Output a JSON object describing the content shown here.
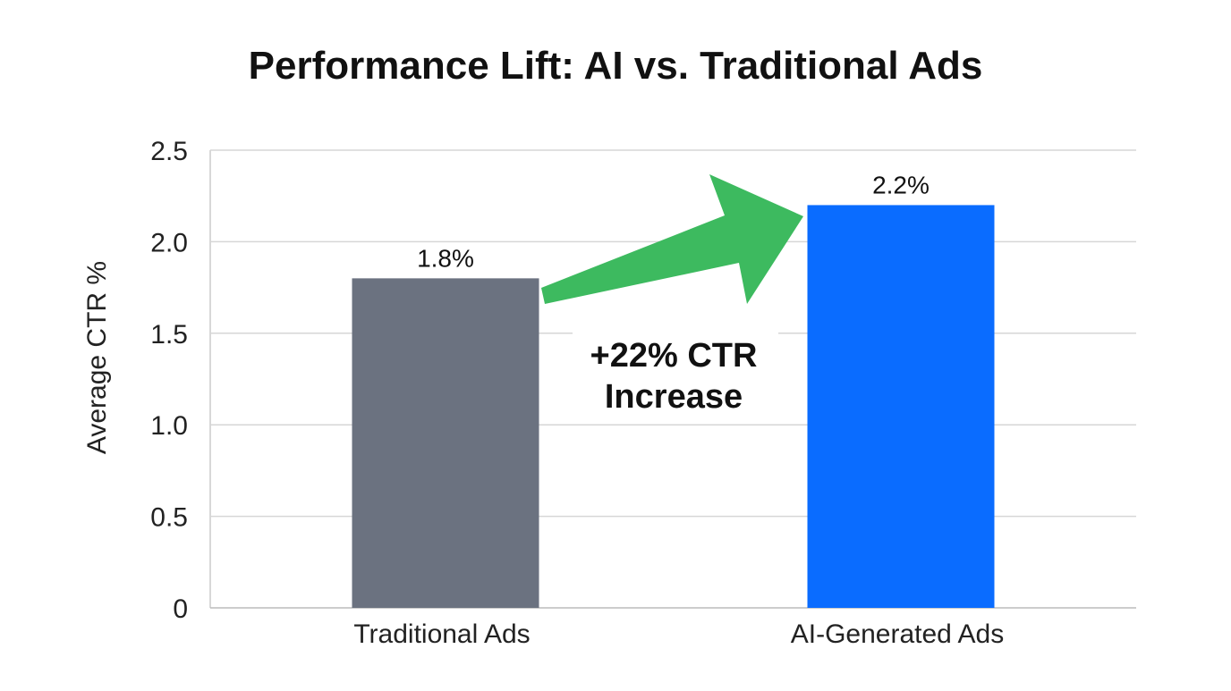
{
  "chart_data": {
    "type": "bar",
    "title": "Performance Lift: AI vs. Traditional Ads",
    "xlabel": "",
    "ylabel": "Average CTR %",
    "ylim": [
      0,
      2.5
    ],
    "yticks": [
      "0",
      "0.5",
      "1.0",
      "1.5",
      "2.0",
      "2.5"
    ],
    "grid": true,
    "categories": [
      "Traditional Ads",
      "AI-Generated Ads"
    ],
    "values": [
      1.8,
      2.2
    ],
    "data_labels": [
      "1.8%",
      "2.2%"
    ],
    "colors": [
      "#6b7280",
      "#0a6cff"
    ],
    "annotation": {
      "lines": [
        "+22% CTR",
        "Increase"
      ],
      "arrow_color": "#3dba5f"
    }
  }
}
